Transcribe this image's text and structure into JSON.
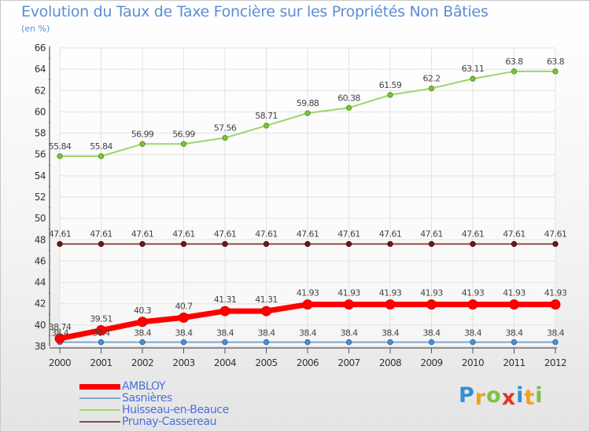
{
  "chart_data": {
    "type": "line",
    "title": "Evolution du Taux de Taxe Foncière sur les Propriétés Non Bâties",
    "subtitle": "(en %)",
    "xlabel": "",
    "ylabel": "",
    "x": [
      "2000",
      "2001",
      "2002",
      "2003",
      "2004",
      "2005",
      "2006",
      "2007",
      "2008",
      "2009",
      "2010",
      "2011",
      "2012"
    ],
    "ylim": [
      38,
      66
    ],
    "yticks": [
      38,
      40,
      42,
      44,
      46,
      48,
      50,
      52,
      54,
      56,
      58,
      60,
      62,
      64,
      66
    ],
    "grid": true,
    "legend_position": "bottom-left",
    "series": [
      {
        "name": "AMBLOY",
        "color": "#ff0000",
        "values": [
          38.74,
          39.51,
          40.3,
          40.7,
          41.31,
          41.31,
          41.93,
          41.93,
          41.93,
          41.93,
          41.93,
          41.93,
          41.93
        ],
        "labels": [
          "38.74",
          "39.51",
          "40.3",
          "40.7",
          "41.31",
          "41.31",
          "41.93",
          "41.93",
          "41.93",
          "41.93",
          "41.93",
          "41.93",
          "41.93"
        ]
      },
      {
        "name": "Sasnières",
        "color": "#7aa8d0",
        "values": [
          38.4,
          38.4,
          38.4,
          38.4,
          38.4,
          38.4,
          38.4,
          38.4,
          38.4,
          38.4,
          38.4,
          38.4,
          38.4
        ],
        "labels": [
          "38.4",
          "38.4",
          "38.4",
          "38.4",
          "38.4",
          "38.4",
          "38.4",
          "38.4",
          "38.4",
          "38.4",
          "38.4",
          "38.4",
          "38.4"
        ]
      },
      {
        "name": "Huisseau-en-Beauce",
        "color": "#9ad66a",
        "values": [
          55.84,
          55.84,
          56.99,
          56.99,
          57.56,
          58.71,
          59.88,
          60.38,
          61.59,
          62.2,
          63.11,
          63.8,
          63.8
        ],
        "labels": [
          "55.84",
          "55.84",
          "56.99",
          "56.99",
          "57.56",
          "58.71",
          "59.88",
          "60.38",
          "61.59",
          "62.2",
          "63.11",
          "63.8",
          "63.8"
        ]
      },
      {
        "name": "Prunay-Cassereau",
        "color": "#8b4a4a",
        "values": [
          47.61,
          47.61,
          47.61,
          47.61,
          47.61,
          47.61,
          47.61,
          47.61,
          47.61,
          47.61,
          47.61,
          47.61,
          47.61
        ],
        "labels": [
          "47.61",
          "47.61",
          "47.61",
          "47.61",
          "47.61",
          "47.61",
          "47.61",
          "47.61",
          "47.61",
          "47.61",
          "47.61",
          "47.61",
          "47.61"
        ]
      }
    ]
  },
  "brand": {
    "letters": [
      "P",
      "r",
      "o",
      "x",
      "i",
      "t",
      "i"
    ],
    "colors": [
      "#2f8fd8",
      "#f2a21b",
      "#7cc242",
      "#e2342b",
      "#2f8fd8",
      "#f2a21b",
      "#7cc242"
    ]
  }
}
